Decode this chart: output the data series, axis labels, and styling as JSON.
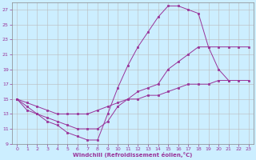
{
  "background_color": "#cceeff",
  "line_color": "#993399",
  "grid_color": "#bbbbbb",
  "xlabel": "Windchill (Refroidissement éolien,°C)",
  "xlim": [
    -0.5,
    23.5
  ],
  "ylim": [
    9,
    28
  ],
  "yticks": [
    9,
    11,
    13,
    15,
    17,
    19,
    21,
    23,
    25,
    27
  ],
  "xticks": [
    0,
    1,
    2,
    3,
    4,
    5,
    6,
    7,
    8,
    9,
    10,
    11,
    12,
    13,
    14,
    15,
    16,
    17,
    18,
    19,
    20,
    21,
    22,
    23
  ],
  "series": [
    {
      "x": [
        0,
        1,
        2,
        3,
        4,
        5,
        6,
        7,
        8,
        9,
        10,
        11,
        12,
        13,
        14,
        15,
        16,
        17,
        18,
        19,
        20,
        21,
        22,
        23
      ],
      "y": [
        15,
        14.5,
        14,
        13.5,
        13,
        13,
        13,
        13,
        13.5,
        14,
        14.5,
        15,
        15,
        15.5,
        15.5,
        16,
        16.5,
        17,
        17,
        17,
        17.5,
        17.5,
        17.5,
        17.5
      ]
    },
    {
      "x": [
        0,
        1,
        2,
        3,
        4,
        5,
        6,
        7,
        8,
        9,
        10,
        11,
        12,
        13,
        14,
        15,
        16,
        17,
        18,
        19,
        20,
        21,
        22,
        23
      ],
      "y": [
        15,
        14,
        13,
        12.5,
        12,
        11.5,
        11,
        11,
        11,
        12,
        14,
        15,
        16,
        16.5,
        17,
        19,
        20,
        21,
        22,
        22,
        22,
        22,
        22,
        22
      ]
    },
    {
      "x": [
        0,
        1,
        2,
        3,
        4,
        5,
        6,
        7,
        8,
        9,
        10,
        11,
        12,
        13,
        14,
        15,
        16,
        17,
        18,
        19,
        20,
        21
      ],
      "y": [
        15,
        13.5,
        13,
        12,
        11.5,
        10.5,
        10,
        9.5,
        9.5,
        13,
        16.5,
        19.5,
        22,
        24,
        26,
        27.5,
        27.5,
        27,
        26.5,
        22,
        19,
        17.5
      ]
    }
  ]
}
